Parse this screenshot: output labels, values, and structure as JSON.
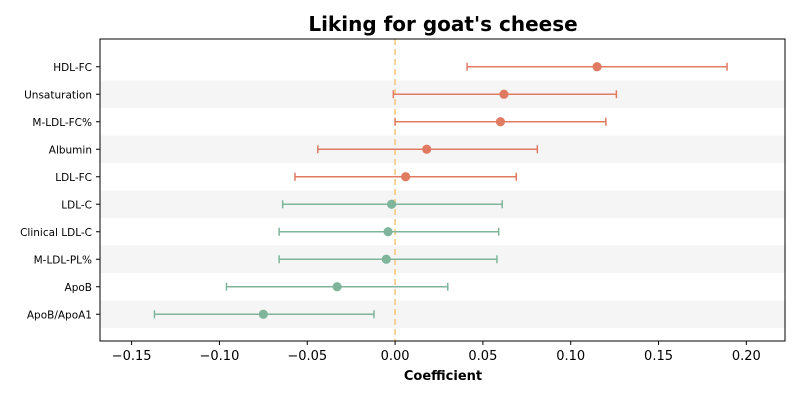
{
  "chart_data": {
    "type": "forest",
    "title": "Liking for goat's cheese",
    "xlabel": "Coefficient",
    "xlim": [
      -0.168,
      0.222
    ],
    "xticks": [
      -0.15,
      -0.1,
      -0.05,
      0.0,
      0.05,
      0.1,
      0.15,
      0.2
    ],
    "xtick_labels": [
      "−0.15",
      "−0.10",
      "−0.05",
      "0.00",
      "0.05",
      "0.10",
      "0.15",
      "0.20"
    ],
    "reference_line": 0.0,
    "grid": false,
    "alternating_row_bands": true,
    "colors": {
      "positive": "#e07b62",
      "negative": "#7fb59b",
      "reference": "#f5c882",
      "band": "#f5f5f5"
    },
    "categories": [
      "HDL-FC",
      "Unsaturation",
      "M-LDL-FC%",
      "Albumin",
      "LDL-FC",
      "LDL-C",
      "Clinical LDL-C",
      "M-LDL-PL%",
      "ApoB",
      "ApoB/ApoA1"
    ],
    "estimates": [
      0.115,
      0.062,
      0.06,
      0.018,
      0.006,
      -0.002,
      -0.004,
      -0.005,
      -0.033,
      -0.075
    ],
    "ci_low": [
      0.041,
      -0.001,
      0.0,
      -0.044,
      -0.057,
      -0.064,
      -0.066,
      -0.066,
      -0.096,
      -0.137
    ],
    "ci_high": [
      0.189,
      0.126,
      0.12,
      0.081,
      0.069,
      0.061,
      0.059,
      0.058,
      0.03,
      -0.012
    ]
  }
}
